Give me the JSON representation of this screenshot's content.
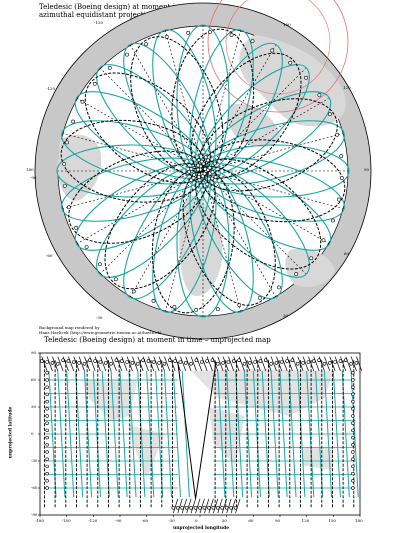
{
  "polar_map": {
    "title_line1": "Teledesic (Boeing design) at moment in time",
    "title_line2": "azimuthal equidistant projection",
    "credit_line1": "Background map rendered by",
    "credit_line2": "Hans Havlicek (http://www.geometrie.tuwien.ac.at/havlicek)",
    "rim_labels": [
      "-150",
      "-120",
      "180",
      "150",
      "120",
      "90",
      "60",
      "30",
      "-30",
      "-60",
      "-90"
    ],
    "colors": {
      "orbit": "#1aa6a6",
      "track": "#000000",
      "land": "#d8d8d8",
      "rim": "#c8c8c8",
      "red_ring": "#e86a6a"
    }
  },
  "rect_map": {
    "title": "Teledesic (Boeing design) at moment in time – unprojected map",
    "xlabel": "unprojected longitude",
    "ylabel": "unprojected latitude",
    "x_ticks": [
      "-180",
      "-150",
      "-120",
      "-90",
      "-60",
      "-30",
      "0",
      "30",
      "60",
      "90",
      "120",
      "150",
      "180"
    ],
    "y_ticks": [
      "90",
      "60",
      "30",
      "0",
      "-30",
      "-60",
      "-90"
    ],
    "xlim": [
      -180,
      180
    ],
    "ylim": [
      -90,
      90
    ]
  }
}
